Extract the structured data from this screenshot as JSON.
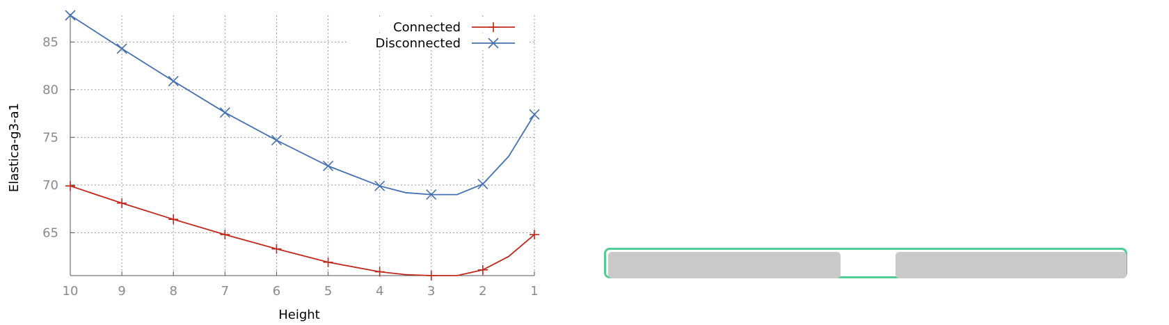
{
  "chart_data": {
    "type": "line",
    "xlabel": "Height",
    "ylabel": "Elastica-g3-a1",
    "x_ticks": [
      10,
      9,
      8,
      7,
      6,
      5,
      4,
      3,
      2,
      1
    ],
    "y_ticks": [
      65,
      70,
      75,
      80,
      85
    ],
    "xlim": [
      10,
      1
    ],
    "ylim": [
      60.5,
      87.8
    ],
    "x_reversed": true,
    "grid": true,
    "legend_position": "top-right",
    "series": [
      {
        "name": "Connected",
        "color": "#c0281c",
        "marker": "plus",
        "x": [
          10,
          9,
          8,
          7,
          6,
          5,
          4,
          3.5,
          3,
          2.5,
          2,
          1.5,
          1
        ],
        "y": [
          69.9,
          68.1,
          66.4,
          64.8,
          63.3,
          61.9,
          60.9,
          60.6,
          60.5,
          60.5,
          61.1,
          62.5,
          64.8
        ],
        "marker_x": [
          10,
          9,
          8,
          7,
          6,
          5,
          4,
          3,
          2,
          1
        ]
      },
      {
        "name": "Disconnected",
        "color": "#4470b0",
        "marker": "x",
        "x": [
          10,
          9,
          8,
          7,
          6,
          5,
          4,
          3.5,
          3,
          2.5,
          2,
          1.5,
          1
        ],
        "y": [
          87.8,
          84.3,
          80.9,
          77.6,
          74.7,
          72.0,
          69.9,
          69.2,
          69.0,
          69.0,
          70.1,
          73.0,
          77.4
        ],
        "marker_x": [
          10,
          9,
          8,
          7,
          6,
          5,
          4,
          3,
          2,
          1
        ]
      }
    ]
  },
  "widget": {
    "border_color": "#4fcd94",
    "segment_color": "#c9c9c9"
  }
}
